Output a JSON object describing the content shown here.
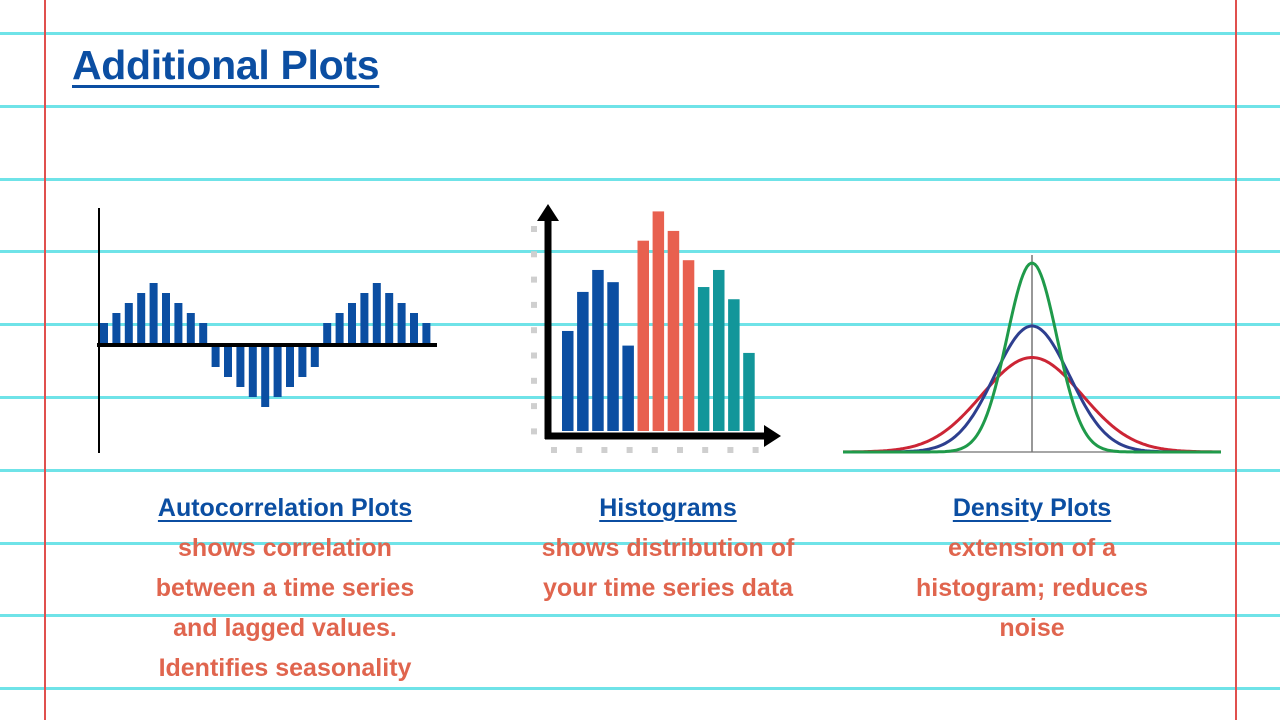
{
  "title": "Additional Plots",
  "colors": {
    "rule_line": "#6fe3e8",
    "margin_line": "#e0504e",
    "heading": "#0b4ea2",
    "body_text": "#e0654e",
    "bar_blue": "#0b4ea2",
    "bar_red": "#e8604f",
    "bar_teal": "#12969a",
    "curve_green": "#1f9a4a",
    "curve_blue": "#2e3f8f",
    "curve_red": "#cc2535"
  },
  "sections": [
    {
      "heading": "Autocorrelation Plots",
      "lines": [
        "shows correlation",
        "between a time series",
        "and lagged values.",
        "Identifies seasonality"
      ]
    },
    {
      "heading": "Histograms",
      "lines": [
        "shows distribution of",
        "your time series data"
      ]
    },
    {
      "heading": "Density Plots",
      "lines": [
        "extension of a",
        "histogram; reduces",
        "noise"
      ]
    }
  ],
  "illustrations": {
    "autocorrelation": {
      "values": [
        1,
        2,
        3,
        4,
        5,
        4,
        3,
        2,
        1,
        -1,
        -2,
        -3,
        -4,
        -5,
        -4,
        -3,
        -2,
        -1,
        1,
        2,
        3,
        4,
        5,
        4,
        3,
        2,
        1
      ]
    },
    "histogram": {
      "values": [
        4.1,
        5.7,
        6.6,
        6.1,
        3.5,
        7.8,
        9.0,
        8.2,
        7.0,
        5.9,
        6.6,
        5.4,
        3.2
      ],
      "groups": [
        "blue",
        "blue",
        "blue",
        "blue",
        "blue",
        "red",
        "red",
        "red",
        "red",
        "teal",
        "teal",
        "teal",
        "teal"
      ]
    },
    "density": {
      "curves": [
        {
          "color": "green",
          "sigma": 1.0
        },
        {
          "color": "blue",
          "sigma": 1.5
        },
        {
          "color": "red",
          "sigma": 2.0
        }
      ]
    }
  }
}
